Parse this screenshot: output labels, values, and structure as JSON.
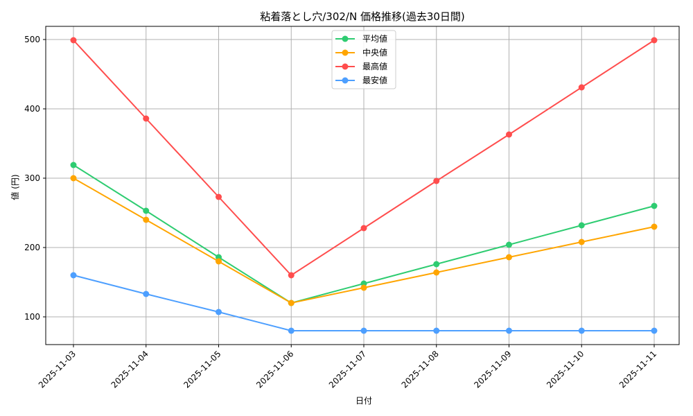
{
  "chart_data": {
    "type": "line",
    "title": "粘着落とし穴/302/N 価格推移(過去30日間)",
    "xlabel": "日付",
    "ylabel": "値 (円)",
    "categories": [
      "2025-11-03",
      "2025-11-04",
      "2025-11-05",
      "2025-11-06",
      "2025-11-07",
      "2025-11-08",
      "2025-11-09",
      "2025-11-10",
      "2025-11-11"
    ],
    "yticks": [
      100,
      200,
      300,
      400,
      500
    ],
    "ylim": [
      60,
      520
    ],
    "grid": true,
    "legend_position": "upper center",
    "series": [
      {
        "name": "平均値",
        "color": "#2ecc71",
        "values": [
          319,
          253,
          186,
          120,
          148,
          176,
          204,
          232,
          260
        ]
      },
      {
        "name": "中央値",
        "color": "#ffa500",
        "values": [
          300,
          240,
          180,
          120,
          142,
          164,
          186,
          208,
          230
        ]
      },
      {
        "name": "最高値",
        "color": "#ff4d4d",
        "values": [
          499,
          386,
          273,
          160,
          228,
          296,
          363,
          431,
          499
        ]
      },
      {
        "name": "最安値",
        "color": "#4d9fff",
        "values": [
          160,
          133,
          107,
          80,
          80,
          80,
          80,
          80,
          80
        ]
      }
    ]
  }
}
